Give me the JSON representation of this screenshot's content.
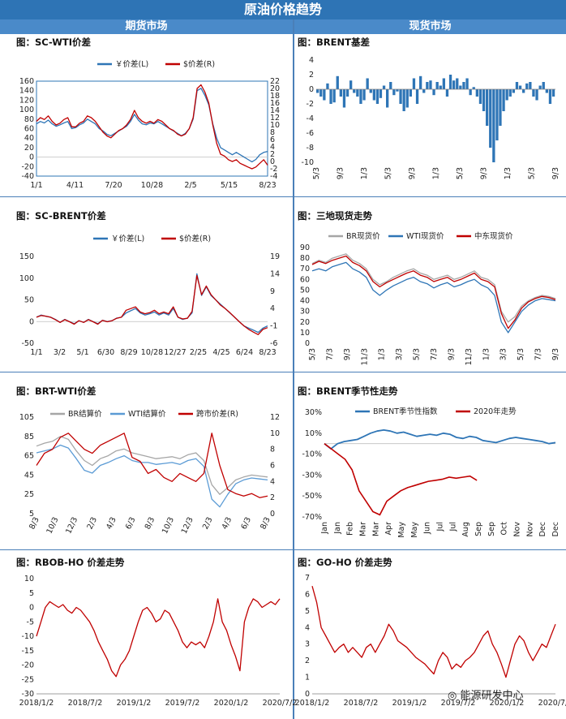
{
  "header": {
    "title": "原油价格趋势",
    "futures_label": "期货市场",
    "spot_label": "现货市场"
  },
  "watermark": "能源研发中心",
  "chart_data": [
    {
      "id": "sc_wti",
      "type": "line",
      "title": "图：SC-WTI价差",
      "legend": [
        "￥价差(L)",
        "$价差(R)"
      ],
      "x_ticks": [
        "1/1",
        "4/11",
        "7/20",
        "10/28",
        "2/5",
        "5/15",
        "8/23"
      ],
      "y_left_ticks": [
        "160",
        "140",
        "120",
        "100",
        "80",
        "60",
        "40",
        "20",
        "0",
        "-20",
        "-40"
      ],
      "y_right_ticks": [
        "22",
        "20",
        "18",
        "16",
        "14",
        "12",
        "10",
        "8",
        "6",
        "4",
        "2",
        "0",
        "-2",
        "-4"
      ],
      "ylim_left": [
        -40,
        160
      ],
      "ylim_right": [
        -4,
        22
      ],
      "series": [
        {
          "name": "￥价差(L)",
          "axis": "left",
          "color": "#2e75b6",
          "values": [
            70,
            75,
            72,
            78,
            70,
            65,
            68,
            72,
            75,
            60,
            62,
            68,
            72,
            80,
            75,
            70,
            60,
            55,
            48,
            45,
            50,
            55,
            60,
            65,
            75,
            90,
            78,
            70,
            68,
            72,
            70,
            75,
            70,
            65,
            60,
            55,
            50,
            45,
            50,
            60,
            80,
            140,
            145,
            130,
            110,
            70,
            40,
            20,
            15,
            10,
            5,
            10,
            5,
            0,
            -5,
            -10,
            -5,
            5,
            10,
            12
          ]
        },
        {
          "name": "$价差(R)",
          "axis": "right",
          "color": "#c00000",
          "values": [
            11,
            12,
            11.5,
            12.5,
            11,
            10,
            10.5,
            11.5,
            12,
            9.5,
            9.5,
            10.5,
            11,
            12.5,
            12,
            11,
            9.5,
            8,
            7,
            6.5,
            7.5,
            8.5,
            9,
            10,
            11.5,
            14,
            12,
            11,
            10.5,
            11,
            10.5,
            11.5,
            11,
            10,
            9,
            8.5,
            7.5,
            7,
            7.5,
            9,
            12,
            20,
            21,
            19,
            16,
            10,
            5,
            2,
            1.5,
            0.5,
            0,
            0.5,
            -0.5,
            -1,
            -1.5,
            -2,
            -1.5,
            -0.5,
            0.5,
            -1
          ]
        }
      ]
    },
    {
      "id": "brent_basis",
      "type": "bar",
      "title": "图：BRENT基差",
      "x_ticks": [
        "5/3",
        "9/3",
        "1/3",
        "5/3",
        "9/3",
        "1/3",
        "5/3",
        "9/3",
        "1/3",
        "5/3",
        "9/3"
      ],
      "y_ticks": [
        "4",
        "2",
        "0",
        "-2",
        "-4",
        "-6",
        "-8",
        "-10"
      ],
      "ylim": [
        -10,
        4
      ],
      "color": "#2e75b6",
      "values": [
        -0.5,
        -1,
        -1.5,
        0.8,
        -2,
        -1.8,
        1.8,
        -1,
        -2.5,
        -1,
        1.2,
        -0.5,
        -1,
        -2,
        -1.5,
        1.5,
        -0.5,
        -1.5,
        -2,
        -1.2,
        0.5,
        -2.5,
        1,
        -0.8,
        -0.3,
        -2,
        -3,
        -2.5,
        -1,
        1.5,
        -2,
        1.8,
        -0.5,
        1,
        1.2,
        -0.8,
        1,
        0.5,
        1.5,
        -1,
        2,
        1.2,
        1.5,
        0.5,
        1,
        1.5,
        -0.8,
        0.3,
        -1,
        -2,
        -3,
        -5,
        -8,
        -10,
        -7,
        -5,
        -3,
        -1.5,
        -1,
        -0.5,
        1,
        0.5,
        -0.5,
        0.8,
        1,
        -1,
        -1.5,
        0.5,
        1,
        -0.5,
        -2,
        -1
      ]
    },
    {
      "id": "sc_brent",
      "type": "line",
      "title": "图：SC-BRENT价差",
      "legend": [
        "￥价差(L)",
        "$价差(R)"
      ],
      "x_ticks": [
        "1/1",
        "3/2",
        "5/1",
        "6/30",
        "8/29",
        "10/28",
        "12/27",
        "2/25",
        "4/25",
        "6/24",
        "8/23"
      ],
      "y_left_ticks": [
        "150",
        "100",
        "50",
        "0",
        "-50"
      ],
      "y_right_ticks": [
        "19",
        "14",
        "9",
        "4",
        "-1",
        "-6"
      ],
      "ylim_left": [
        -50,
        150
      ],
      "ylim_right": [
        -6,
        19
      ],
      "series": [
        {
          "name": "￥价差(L)",
          "axis": "left",
          "color": "#2e75b6",
          "values": [
            10,
            15,
            12,
            10,
            5,
            -2,
            5,
            0,
            -5,
            2,
            -2,
            5,
            0,
            -5,
            3,
            0,
            2,
            8,
            10,
            20,
            25,
            30,
            20,
            15,
            18,
            22,
            15,
            20,
            15,
            30,
            10,
            5,
            8,
            20,
            110,
            60,
            80,
            60,
            50,
            40,
            30,
            20,
            10,
            0,
            -10,
            -15,
            -20,
            -25,
            -15,
            -10
          ]
        },
        {
          "name": "$价差(R)",
          "axis": "right",
          "color": "#c00000",
          "values": [
            1.5,
            2,
            1.8,
            1.5,
            0.8,
            0,
            0.8,
            0.2,
            -0.5,
            0.5,
            0,
            0.8,
            0.2,
            -0.5,
            0.6,
            0.2,
            0.5,
            1.2,
            1.5,
            3.5,
            4,
            4.5,
            3,
            2.5,
            2.8,
            3.5,
            2.5,
            3,
            2.5,
            4.5,
            1.5,
            1,
            1.2,
            3.2,
            13.5,
            8,
            10.5,
            8,
            6.5,
            5,
            4,
            2.8,
            1.5,
            0.2,
            -1,
            -2,
            -2.8,
            -3.5,
            -2,
            -1.5
          ]
        }
      ]
    },
    {
      "id": "three_spot",
      "type": "line",
      "title": "图：三地现货走势",
      "legend": [
        "BR现货价",
        "WTI现货价",
        "中东现货价"
      ],
      "x_ticks": [
        "5/3",
        "7/3",
        "9/3",
        "11/3",
        "1/3",
        "3/3",
        "5/3",
        "7/3",
        "9/3",
        "11/3",
        "1/3",
        "3/3",
        "5/3",
        "7/3",
        "9/3"
      ],
      "y_ticks": [
        "90",
        "80",
        "70",
        "60",
        "50",
        "40",
        "30",
        "20",
        "10",
        "0"
      ],
      "ylim": [
        0,
        90
      ],
      "series": [
        {
          "name": "BR现货价",
          "color": "#a6a6a6",
          "values": [
            75,
            78,
            76,
            80,
            82,
            84,
            78,
            75,
            70,
            60,
            55,
            58,
            62,
            65,
            68,
            70,
            66,
            64,
            60,
            62,
            64,
            60,
            62,
            65,
            68,
            62,
            60,
            55,
            30,
            20,
            25,
            35,
            40,
            43,
            45,
            44,
            42
          ]
        },
        {
          "name": "WTI现货价",
          "color": "#2e75b6",
          "values": [
            68,
            70,
            68,
            72,
            74,
            76,
            70,
            67,
            62,
            50,
            45,
            50,
            54,
            57,
            60,
            62,
            58,
            56,
            52,
            55,
            57,
            53,
            55,
            58,
            60,
            55,
            52,
            45,
            20,
            10,
            20,
            30,
            36,
            40,
            42,
            41,
            40
          ]
        },
        {
          "name": "中东现货价",
          "color": "#c00000",
          "values": [
            74,
            77,
            75,
            78,
            80,
            82,
            76,
            73,
            68,
            58,
            53,
            57,
            60,
            63,
            66,
            68,
            64,
            62,
            58,
            60,
            62,
            58,
            60,
            63,
            66,
            60,
            58,
            53,
            28,
            14,
            22,
            33,
            39,
            42,
            44,
            43,
            41
          ]
        }
      ]
    },
    {
      "id": "brt_wti",
      "type": "line",
      "title": "图：BRT-WTI价差",
      "legend": [
        "BR结算价",
        "WTI结算价",
        "跨市价差(R)"
      ],
      "x_ticks": [
        "8/3",
        "10/3",
        "12/3",
        "2/3",
        "4/3",
        "6/3",
        "8/3",
        "10/3",
        "12/3",
        "2/3",
        "4/3",
        "6/3",
        "8/3"
      ],
      "y_left_ticks": [
        "105",
        "85",
        "65",
        "45",
        "25",
        "5"
      ],
      "y_right_ticks": [
        "12",
        "10",
        "8",
        "6",
        "4",
        "2",
        "0"
      ],
      "ylim_left": [
        5,
        105
      ],
      "ylim_right": [
        0,
        12
      ],
      "series": [
        {
          "name": "BR结算价",
          "axis": "left",
          "color": "#a6a6a6",
          "values": [
            75,
            78,
            80,
            85,
            82,
            70,
            60,
            55,
            62,
            65,
            70,
            72,
            68,
            66,
            64,
            62,
            63,
            64,
            62,
            66,
            68,
            60,
            35,
            25,
            32,
            40,
            43,
            45,
            44,
            43
          ]
        },
        {
          "name": "WTI结算价",
          "axis": "left",
          "color": "#5b9bd5",
          "values": [
            68,
            70,
            72,
            76,
            73,
            62,
            50,
            47,
            55,
            58,
            62,
            65,
            60,
            58,
            58,
            56,
            57,
            58,
            56,
            60,
            62,
            54,
            20,
            12,
            25,
            36,
            40,
            42,
            41,
            40
          ]
        },
        {
          "name": "跨市价差(R)",
          "axis": "right",
          "color": "#c00000",
          "values": [
            6,
            7.5,
            8,
            9.5,
            10,
            9,
            8,
            7.5,
            8.5,
            9,
            9.5,
            10,
            7,
            6.5,
            5,
            5.5,
            4.5,
            4,
            5,
            4.5,
            4,
            5,
            10,
            6,
            3,
            2.5,
            2.2,
            2.5,
            2,
            2.2
          ]
        }
      ]
    },
    {
      "id": "brent_seasonal",
      "type": "line",
      "title": "图：BRENT季节性走势",
      "legend": [
        "BRENT季节性指数",
        "2020年走势"
      ],
      "x_ticks": [
        "Jan",
        "Jan",
        "Feb",
        "Mar",
        "Mar",
        "Apr",
        "May",
        "May",
        "Jun",
        "Jul",
        "Jul",
        "Aug",
        "Sep",
        "Sep",
        "Oct",
        "Nov",
        "Nov",
        "Dec",
        "Dec"
      ],
      "y_ticks": [
        "30%",
        "10%",
        "-10%",
        "-30%",
        "-50%",
        "-70%"
      ],
      "ylim": [
        -70,
        30
      ],
      "series": [
        {
          "name": "BRENT季节性指数",
          "color": "#2e75b6",
          "values": [
            0,
            -5,
            0,
            2,
            3,
            4,
            7,
            10,
            12,
            13,
            12,
            10,
            11,
            9,
            7,
            8,
            9,
            8,
            10,
            9,
            6,
            5,
            7,
            6,
            3,
            2,
            1,
            3,
            5,
            6,
            5,
            4,
            3,
            2,
            0,
            1
          ]
        },
        {
          "name": "2020年走势",
          "color": "#c00000",
          "values": [
            0,
            -5,
            -10,
            -15,
            -25,
            -45,
            -55,
            -65,
            -68,
            -55,
            -50,
            -45,
            -42,
            -40,
            -38,
            -36,
            -35,
            -34,
            -32,
            -33,
            -32,
            -31,
            -35
          ]
        }
      ]
    },
    {
      "id": "rbob_ho",
      "type": "line",
      "title": "图：RBOB-HO 价差走势",
      "x_ticks": [
        "2018/1/2",
        "2018/7/2",
        "2019/1/2",
        "2019/7/2",
        "2020/1/2",
        "2020/7/2"
      ],
      "y_ticks": [
        "10",
        "5",
        "0",
        "-5",
        "-10",
        "-15",
        "-20",
        "-25",
        "-30"
      ],
      "ylim": [
        -30,
        10
      ],
      "color": "#c00000",
      "values": [
        -10,
        -5,
        0,
        2,
        1,
        0,
        1,
        -1,
        -2,
        0,
        -1,
        -3,
        -5,
        -8,
        -12,
        -15,
        -18,
        -22,
        -24,
        -20,
        -18,
        -15,
        -10,
        -5,
        -1,
        0,
        -2,
        -5,
        -4,
        -1,
        -2,
        -5,
        -8,
        -12,
        -14,
        -12,
        -13,
        -12,
        -14,
        -10,
        -5,
        3,
        -5,
        -8,
        -13,
        -17,
        -22,
        -5,
        0,
        3,
        2,
        0,
        1,
        2,
        1,
        3
      ]
    },
    {
      "id": "go_ho",
      "type": "line",
      "title": "图：GO-HO 价差走势",
      "x_ticks": [
        "2018/1/2",
        "2018/7/2",
        "2019/1/2",
        "2019/7/2",
        "2020/1/2",
        "2020/7/2"
      ],
      "y_ticks": [
        "7",
        "6",
        "5",
        "4",
        "3",
        "2",
        "1",
        "0"
      ],
      "ylim": [
        0,
        7
      ],
      "color": "#c00000",
      "values": [
        6.5,
        5.5,
        4,
        3.5,
        3,
        2.5,
        2.8,
        3,
        2.5,
        2.8,
        2.5,
        2.2,
        2.8,
        3,
        2.5,
        3,
        3.5,
        4.2,
        3.8,
        3.2,
        3,
        2.8,
        2.5,
        2.2,
        2,
        1.8,
        1.5,
        1.2,
        2,
        2.5,
        2.2,
        1.5,
        1.8,
        1.6,
        2,
        2.2,
        2.5,
        3,
        3.5,
        3.8,
        3,
        2.5,
        1.8,
        1,
        2,
        3,
        3.5,
        3.2,
        2.5,
        2,
        2.5,
        3,
        2.8,
        3.5,
        4.2
      ]
    }
  ]
}
